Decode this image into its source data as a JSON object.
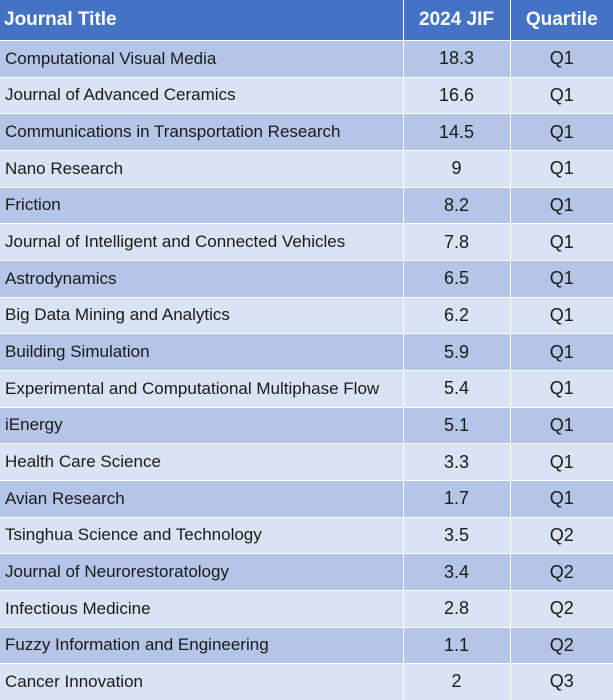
{
  "headers": {
    "title": "Journal Title",
    "jif": "2024 JIF",
    "quartile": "Quartile"
  },
  "rows": [
    {
      "title": "Computational Visual Media",
      "jif": "18.3",
      "quartile": "Q1"
    },
    {
      "title": "Journal of Advanced Ceramics",
      "jif": "16.6",
      "quartile": "Q1"
    },
    {
      "title": "Communications in Transportation Research",
      "jif": "14.5",
      "quartile": "Q1"
    },
    {
      "title": "Nano Research",
      "jif": "9",
      "quartile": "Q1"
    },
    {
      "title": "Friction",
      "jif": "8.2",
      "quartile": "Q1"
    },
    {
      "title": "Journal of Intelligent and Connected Vehicles",
      "jif": "7.8",
      "quartile": "Q1"
    },
    {
      "title": "Astrodynamics",
      "jif": "6.5",
      "quartile": "Q1"
    },
    {
      "title": "Big Data Mining and Analytics",
      "jif": "6.2",
      "quartile": "Q1"
    },
    {
      "title": "Building Simulation",
      "jif": "5.9",
      "quartile": "Q1"
    },
    {
      "title": "Experimental and Computational Multiphase Flow",
      "jif": "5.4",
      "quartile": "Q1"
    },
    {
      "title": "iEnergy",
      "jif": "5.1",
      "quartile": "Q1"
    },
    {
      "title": "Health Care Science",
      "jif": "3.3",
      "quartile": "Q1"
    },
    {
      "title": "Avian Research",
      "jif": "1.7",
      "quartile": "Q1"
    },
    {
      "title": "Tsinghua Science and Technology",
      "jif": "3.5",
      "quartile": "Q2"
    },
    {
      "title": "Journal of Neurorestoratology",
      "jif": "3.4",
      "quartile": "Q2"
    },
    {
      "title": "Infectious Medicine",
      "jif": "2.8",
      "quartile": "Q2"
    },
    {
      "title": "Fuzzy Information and Engineering",
      "jif": "1.1",
      "quartile": "Q2"
    },
    {
      "title": "Cancer Innovation",
      "jif": "2",
      "quartile": "Q3"
    }
  ],
  "colors": {
    "header_bg": "#4472c4",
    "row_dark": "#b4c5e7",
    "row_light": "#dae3f3"
  }
}
